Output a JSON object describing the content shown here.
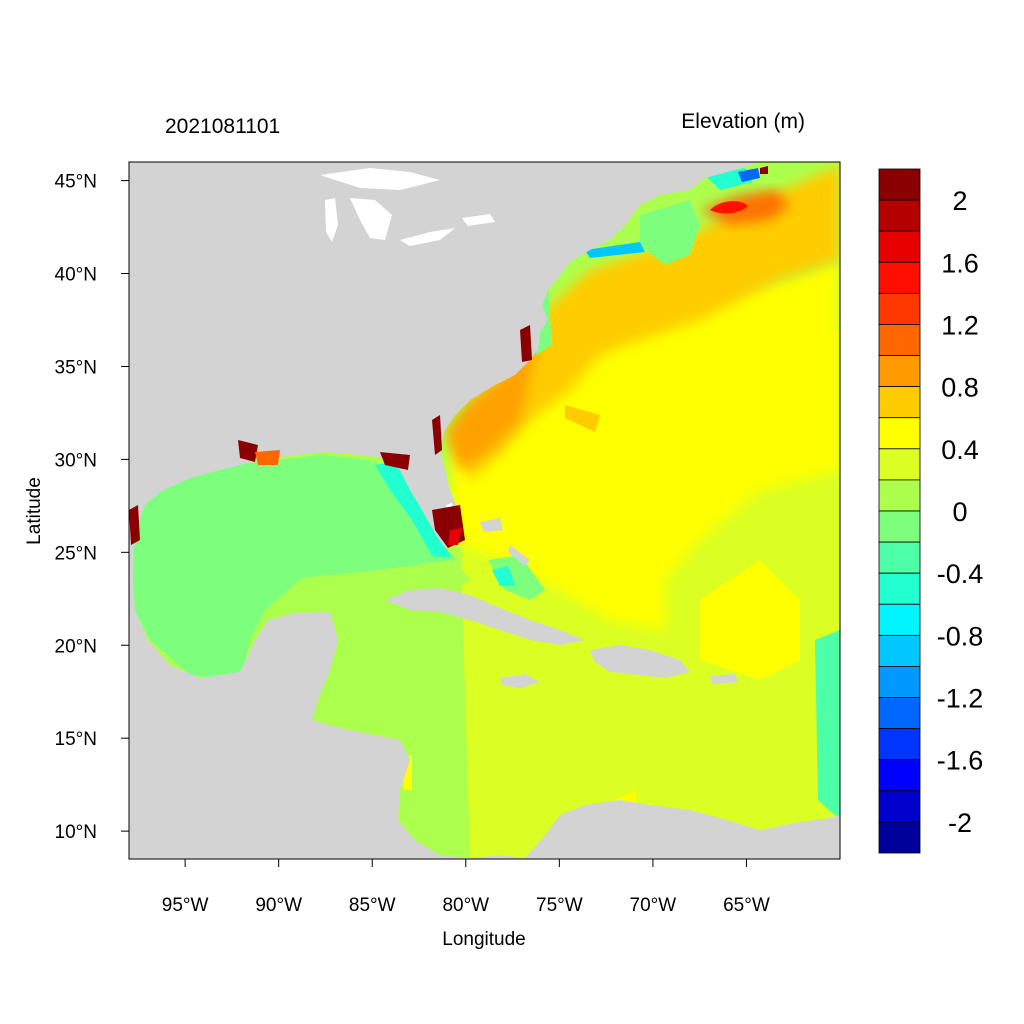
{
  "header": {
    "date_label": "2021081101",
    "variable_label": "Elevation (m)"
  },
  "colors": {
    "land": "#d3d3d3",
    "lakes": "#ffffff",
    "frame": "#000000"
  },
  "map_data": {
    "type": "filled-contour-map",
    "projection": "cylindrical-equidistant",
    "lon_range": [
      -98,
      -60
    ],
    "lat_range": [
      8.5,
      46
    ],
    "x_ticks": [
      {
        "value": -95,
        "label": "95°W"
      },
      {
        "value": -90,
        "label": "90°W"
      },
      {
        "value": -85,
        "label": "85°W"
      },
      {
        "value": -80,
        "label": "80°W"
      },
      {
        "value": -75,
        "label": "75°W"
      },
      {
        "value": -70,
        "label": "70°W"
      },
      {
        "value": -65,
        "label": "65°W"
      }
    ],
    "y_ticks": [
      {
        "value": 45,
        "label": "45°N"
      },
      {
        "value": 40,
        "label": "40°N"
      },
      {
        "value": 35,
        "label": "35°N"
      },
      {
        "value": 30,
        "label": "30°N"
      },
      {
        "value": 25,
        "label": "25°N"
      },
      {
        "value": 20,
        "label": "20°N"
      },
      {
        "value": 15,
        "label": "15°N"
      },
      {
        "value": 10,
        "label": "10°N"
      }
    ],
    "xlabel": "Longitude",
    "ylabel": "Latitude"
  },
  "colorbar": {
    "levels": [
      {
        "color": "#00009a"
      },
      {
        "color": "#0000cd"
      },
      {
        "color": "#0000ff"
      },
      {
        "color": "#0034ff"
      },
      {
        "color": "#0068ff"
      },
      {
        "color": "#009aff"
      },
      {
        "color": "#00c8ff"
      },
      {
        "color": "#00f5ff"
      },
      {
        "color": "#22ffd0"
      },
      {
        "color": "#4dffa6"
      },
      {
        "color": "#7dff7d"
      },
      {
        "color": "#adff4d"
      },
      {
        "color": "#dbff22"
      },
      {
        "color": "#ffff00"
      },
      {
        "color": "#ffcc00"
      },
      {
        "color": "#ff9a00"
      },
      {
        "color": "#ff6800"
      },
      {
        "color": "#ff3700"
      },
      {
        "color": "#ff1000"
      },
      {
        "color": "#e60000"
      },
      {
        "color": "#b40000"
      },
      {
        "color": "#8a0000"
      }
    ],
    "labels": [
      "2",
      "1.6",
      "1.2",
      "0.8",
      "0.4",
      "0",
      "-0.4",
      "-0.8",
      "-1.2",
      "-1.6",
      "-2"
    ]
  }
}
